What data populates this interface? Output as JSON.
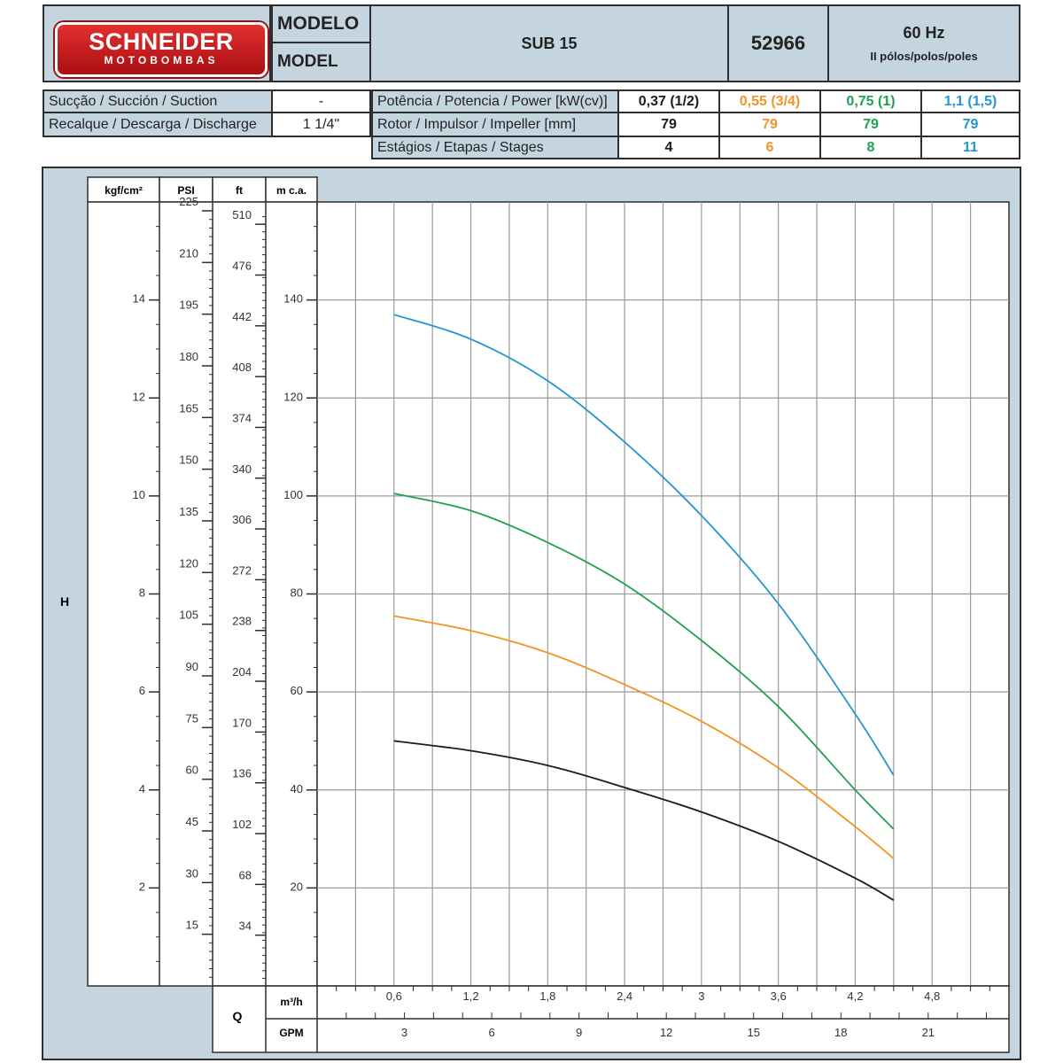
{
  "brand": {
    "name": "SCHNEIDER",
    "tagline": "MOTOBOMBAS"
  },
  "header": {
    "modelo_label": "MODELO",
    "model_label": "MODEL",
    "model_name": "SUB 15",
    "code": "52966",
    "frequency": "60 Hz",
    "poles": "II pólos/polos/poles"
  },
  "specs": {
    "suction_label": "Sucção / Succión / Suction",
    "suction_value": "-",
    "discharge_label": "Recalque / Descarga / Discharge",
    "discharge_value": "1 1/4\"",
    "power_label": "Potência / Potencia / Power [kW(cv)]",
    "impeller_label": "Rotor / Impulsor / Impeller [mm]",
    "stages_label": "Estágios / Etapas / Stages",
    "columns": [
      {
        "power": "0,37 (1/2)",
        "impeller": "79",
        "stages": "4",
        "color": "#1c1c1c"
      },
      {
        "power": "0,55 (3/4)",
        "impeller": "79",
        "stages": "6",
        "color": "#f29422"
      },
      {
        "power": "0,75 (1)",
        "impeller": "79",
        "stages": "8",
        "color": "#20a050"
      },
      {
        "power": "1,1 (1,5)",
        "impeller": "79",
        "stages": "11",
        "color": "#2496cf"
      }
    ]
  },
  "chart_data": {
    "type": "line",
    "h_label": "H",
    "q_label": "Q",
    "grid": true,
    "y_axes": [
      {
        "unit": "kgf/cm²",
        "ticks": [
          "2",
          "4",
          "6",
          "8",
          "10",
          "12",
          "14"
        ]
      },
      {
        "unit": "PSI",
        "ticks": [
          "15",
          "30",
          "45",
          "60",
          "75",
          "90",
          "105",
          "120",
          "135",
          "150",
          "165",
          "180",
          "195",
          "210",
          "225"
        ]
      },
      {
        "unit": "ft",
        "ticks": [
          "34",
          "68",
          "102",
          "136",
          "170",
          "204",
          "238",
          "272",
          "306",
          "340",
          "374",
          "408",
          "442",
          "476",
          "510"
        ]
      },
      {
        "unit": "m c.a.",
        "ticks": [
          "20",
          "40",
          "60",
          "80",
          "100",
          "120",
          "140"
        ],
        "ylim": [
          0,
          160
        ]
      }
    ],
    "x_axes": [
      {
        "unit": "m³/h",
        "ticks": [
          "0,6",
          "1,2",
          "1,8",
          "2,4",
          "3",
          "3,6",
          "4,2",
          "4,8"
        ],
        "xlim": [
          0,
          5.4
        ]
      },
      {
        "unit": "GPM",
        "ticks": [
          "3",
          "6",
          "9",
          "12",
          "15",
          "18",
          "21"
        ]
      }
    ],
    "series": [
      {
        "name": "0,37 (1/2)",
        "color": "#1c1c1c",
        "x": [
          0.6,
          1.2,
          1.8,
          2.4,
          3.0,
          3.6,
          4.2,
          4.5
        ],
        "y": [
          50,
          48,
          45,
          40.5,
          35.5,
          29.5,
          22,
          17.5
        ]
      },
      {
        "name": "0,55 (3/4)",
        "color": "#f29422",
        "x": [
          0.6,
          1.2,
          1.8,
          2.4,
          3.0,
          3.6,
          4.2,
          4.5
        ],
        "y": [
          75.5,
          72.5,
          68,
          61.5,
          54,
          44.5,
          32.5,
          26
        ]
      },
      {
        "name": "0,75 (1)",
        "color": "#20a050",
        "x": [
          0.6,
          1.2,
          1.8,
          2.4,
          3.0,
          3.6,
          4.2,
          4.5
        ],
        "y": [
          100.5,
          97,
          90.5,
          82,
          70.5,
          57,
          40,
          32
        ]
      },
      {
        "name": "1,1 (1,5)",
        "color": "#2496cf",
        "x": [
          0.6,
          1.2,
          1.8,
          2.4,
          3.0,
          3.6,
          4.2,
          4.5
        ],
        "y": [
          137,
          132,
          123.5,
          111,
          96,
          78,
          55.5,
          43
        ]
      }
    ]
  }
}
